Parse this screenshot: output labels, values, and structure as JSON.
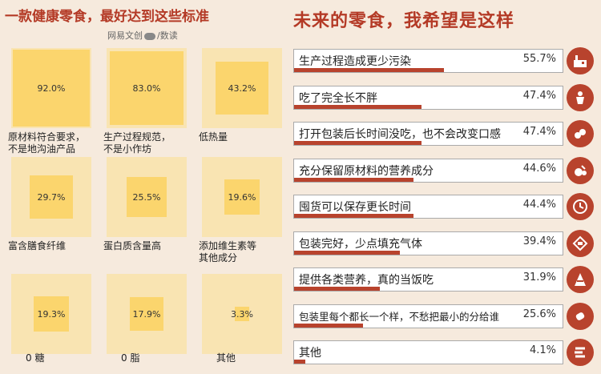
{
  "left_title": "一款健康零食，最好达到这些标准",
  "right_title": "未来的零食，我希望是这样",
  "source": {
    "left": "网易文创",
    "right": "数读"
  },
  "chart_data": [
    {
      "type": "bar",
      "title": "一款健康零食，最好达到这些标准",
      "categories": [
        "原材料符合要求，不是地沟油产品",
        "生产过程规范，不是小作坊",
        "低热量",
        "富含膳食纤维",
        "蛋白质含量高",
        "添加维生素等其他成分",
        "0糖",
        "0脂",
        "其他"
      ],
      "labels": [
        [
          "原材料符合要求，",
          "不是地沟油产品"
        ],
        [
          "生产过程规范，",
          "不是小作坊"
        ],
        [
          "低热量"
        ],
        [
          "富含膳食纤维"
        ],
        [
          "蛋白质含量高"
        ],
        [
          "添加维生素等",
          "其他成分"
        ],
        [
          "0 糖"
        ],
        [
          "0 脂"
        ],
        [
          "其他"
        ]
      ],
      "values": [
        92.0,
        83.0,
        43.2,
        29.7,
        25.5,
        19.6,
        19.3,
        17.9,
        3.3
      ],
      "value_labels": [
        "92.0%",
        "83.0%",
        "43.2%",
        "29.7%",
        "25.5%",
        "19.6%",
        "19.3%",
        "17.9%",
        "3.3%"
      ],
      "unit": "%"
    },
    {
      "type": "bar",
      "title": "未来的零食，我希望是这样",
      "categories": [
        "生产过程造成更少污染",
        "吃了完全长不胖",
        "打开包装后长时间没吃，也不会改变口感",
        "充分保留原材料的营养成分",
        "囤货可以保存更长时间",
        "包装完好，少点填充气体",
        "提供各类营养，真的当饭吃",
        "包装里每个都长一个样，不愁把最小的分给谁",
        "其他"
      ],
      "values": [
        55.7,
        47.4,
        47.4,
        44.6,
        44.4,
        39.4,
        31.9,
        25.6,
        4.1
      ],
      "value_labels": [
        "55.7%",
        "47.4%",
        "47.4%",
        "44.6%",
        "44.4%",
        "39.4%",
        "31.9%",
        "25.6%",
        "4.1%"
      ],
      "icons": [
        "factory-icon",
        "body-icon",
        "pack-icon",
        "fruit-icon",
        "clock-icon",
        "bag-icon",
        "cone-icon",
        "candy-icon",
        "lines-icon"
      ],
      "unit": "%"
    }
  ],
  "colors": {
    "accent": "#b8432d",
    "title": "#b43a26",
    "square_bg": "#f9e4b2",
    "square_fill": "#fbd56d",
    "page_bg": "#f6eadd"
  }
}
